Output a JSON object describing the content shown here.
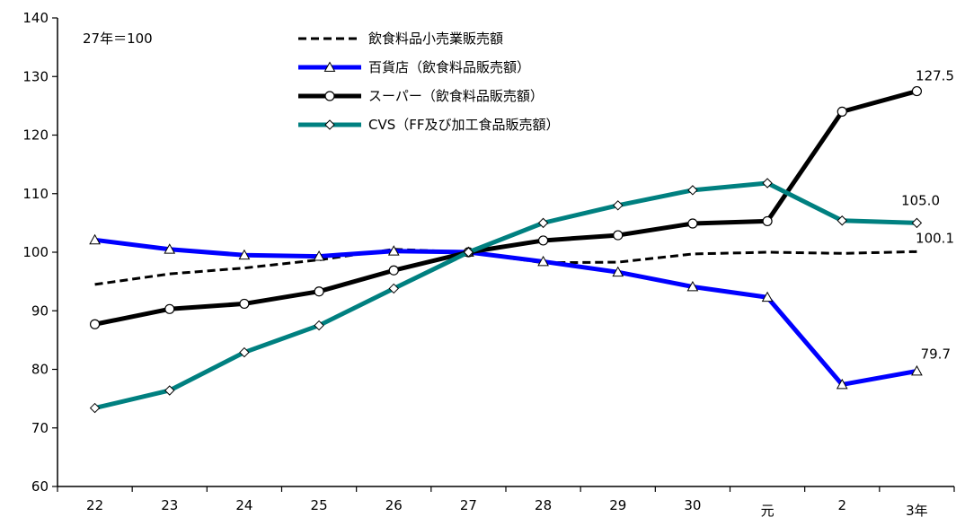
{
  "chart_data": {
    "type": "line",
    "note": "27年＝100",
    "categories": [
      "22",
      "23",
      "24",
      "25",
      "26",
      "27",
      "28",
      "29",
      "30",
      "元",
      "2",
      "3年"
    ],
    "ylim": [
      60,
      140
    ],
    "yticks": [
      60,
      70,
      80,
      90,
      100,
      110,
      120,
      130,
      140
    ],
    "grid": false,
    "legend_position": "top-center",
    "series": [
      {
        "name": "飲食料品小売業販売額",
        "values": [
          94.5,
          96.3,
          97.3,
          98.7,
          100.5,
          100.0,
          98.2,
          98.3,
          99.7,
          100.0,
          99.8,
          100.1
        ],
        "color": "#000000",
        "style": "dashed",
        "marker": "none"
      },
      {
        "name": "百貨店（飲食料品販売額）",
        "values": [
          102.1,
          100.5,
          99.5,
          99.3,
          100.2,
          100.0,
          98.4,
          96.6,
          94.1,
          92.3,
          77.4,
          79.7
        ],
        "color": "#0000ff",
        "style": "solid",
        "marker": "triangle"
      },
      {
        "name": "スーパー（飲食料品販売額）",
        "values": [
          87.7,
          90.3,
          91.2,
          93.3,
          96.9,
          100.0,
          102.0,
          102.9,
          104.9,
          105.3,
          124.0,
          127.5
        ],
        "color": "#000000",
        "style": "solid",
        "marker": "circle"
      },
      {
        "name": "CVS（FF及び加工食品販売額）",
        "values": [
          73.4,
          76.4,
          82.9,
          87.5,
          93.8,
          100.0,
          105.0,
          108.0,
          110.6,
          111.8,
          105.4,
          105.0
        ],
        "color": "#008080",
        "style": "solid",
        "marker": "diamond"
      }
    ],
    "annotations": [
      {
        "series": 2,
        "index": 11,
        "text": "127.5"
      },
      {
        "series": 3,
        "index": 11,
        "text": "105.0"
      },
      {
        "series": 0,
        "index": 11,
        "text": "100.1"
      },
      {
        "series": 1,
        "index": 11,
        "text": "79.7"
      }
    ]
  }
}
